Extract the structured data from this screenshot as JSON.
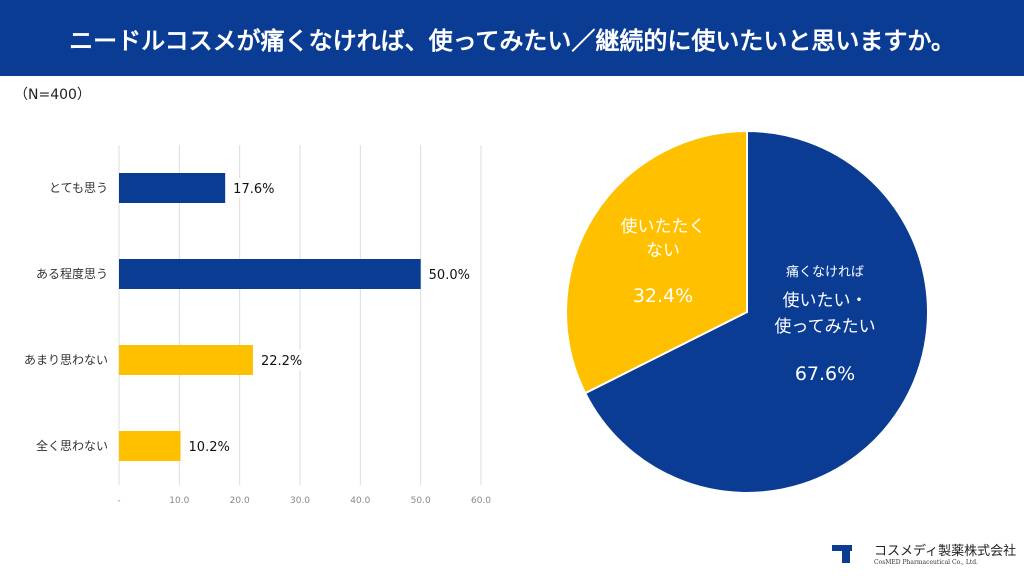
{
  "header": {
    "title": "ニードルコスメが痛くなければ、使ってみたい／継続的に使いたいと思いますか。"
  },
  "sample": "（N=400）",
  "colors": {
    "navy": "#0b3c94",
    "yellow": "#ffc000"
  },
  "chart_data": [
    {
      "type": "bar",
      "orientation": "horizontal",
      "categories": [
        "とても思う",
        "ある程度思う",
        "あまり思わない",
        "全く思わない"
      ],
      "values": [
        17.6,
        50.0,
        22.2,
        10.2
      ],
      "data_labels": [
        "17.6%",
        "50.0%",
        "22.2%",
        "10.2%"
      ],
      "bar_colors": [
        "#0b3c94",
        "#0b3c94",
        "#ffc000",
        "#ffc000"
      ],
      "xlim": [
        0,
        60
      ],
      "xticks": [
        "-",
        "10.0",
        "20.0",
        "30.0",
        "40.0",
        "50.0",
        "60.0"
      ],
      "grid": true
    },
    {
      "type": "pie",
      "slices": [
        {
          "label_lines": [
            "痛くなければ",
            "使いたい・",
            "使ってみたい"
          ],
          "value": 67.6,
          "value_label": "67.6%",
          "color": "#0b3c94"
        },
        {
          "label_lines": [
            "使いたたく",
            "ない"
          ],
          "value": 32.4,
          "value_label": "32.4%",
          "color": "#ffc000"
        }
      ]
    }
  ],
  "logo": {
    "name": "コスメディ製薬株式会社",
    "sub": "CosMED Pharmaceutical Co., Ltd."
  }
}
